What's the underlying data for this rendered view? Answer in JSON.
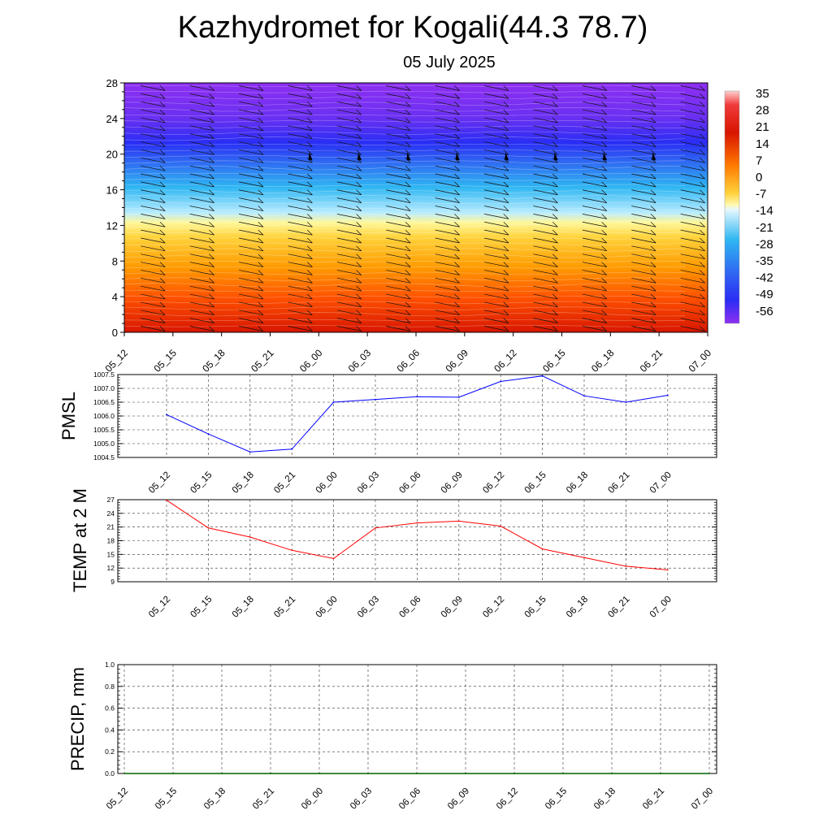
{
  "title": "Kazhydromet for Kogali(44.3 78.7)",
  "subtitle": "05 July 2025",
  "time_labels": [
    "05_12",
    "05_15",
    "05_18",
    "05_21",
    "06_00",
    "06_03",
    "06_06",
    "06_09",
    "06_12",
    "06_15",
    "06_18",
    "06_21",
    "07_00"
  ],
  "chart_data": [
    {
      "type": "heatmap",
      "name": "temperature-wind-cross-section",
      "x": [
        "05_12",
        "05_15",
        "05_18",
        "05_21",
        "06_00",
        "06_03",
        "06_06",
        "06_09",
        "06_12",
        "06_15",
        "06_18",
        "06_21",
        "07_00"
      ],
      "yticks": [
        0,
        4,
        8,
        12,
        16,
        20,
        24,
        28
      ],
      "ylim": [
        0,
        28
      ],
      "colorbar_labels": [
        "35",
        "28",
        "21",
        "14",
        "7",
        "0",
        "-7",
        "-14",
        "-21",
        "-28",
        "-35",
        "-42",
        "-49",
        "-56"
      ],
      "colors": {
        "hot": "#d71700",
        "orange": "#ff7a00",
        "yellow": "#ffef5a",
        "cyan": "#2fb7f2",
        "blue": "#1c2cf2",
        "violet": "#8a2cf0"
      },
      "wind_barbs": true
    },
    {
      "type": "line",
      "name": "pmsl",
      "ylabel": "PMSL",
      "x": [
        "05_12",
        "05_15",
        "05_18",
        "05_21",
        "06_00",
        "06_03",
        "06_06",
        "06_09",
        "06_12",
        "06_15",
        "06_18",
        "06_21",
        "07_00"
      ],
      "yticks": [
        "1004.5",
        "1005.0",
        "1005.5",
        "1006.0",
        "1006.5",
        "1007.0",
        "1007.5"
      ],
      "ylim": [
        1004.5,
        1007.5
      ],
      "grid": true,
      "color": "#0000ff",
      "values": [
        1006.05,
        1005.35,
        1004.7,
        1004.8,
        1006.5,
        1006.6,
        1006.7,
        1006.68,
        1007.25,
        1007.45,
        1006.73,
        1006.5,
        1006.75
      ]
    },
    {
      "type": "line",
      "name": "temp-2m",
      "ylabel": "TEMP at 2 M",
      "x": [
        "05_12",
        "05_15",
        "05_18",
        "05_21",
        "06_00",
        "06_03",
        "06_06",
        "06_09",
        "06_12",
        "06_15",
        "06_18",
        "06_21",
        "07_00"
      ],
      "yticks": [
        "9",
        "12",
        "15",
        "18",
        "21",
        "24",
        "27"
      ],
      "ylim": [
        9,
        27
      ],
      "grid": true,
      "color": "#ff0000",
      "values": [
        26.9,
        20.8,
        18.8,
        15.9,
        14.1,
        20.8,
        21.9,
        22.3,
        21.2,
        16.2,
        14.3,
        12.4,
        11.6
      ]
    },
    {
      "type": "line",
      "name": "precip",
      "ylabel": "PRECIP, mm",
      "x": [
        "05_12",
        "05_15",
        "05_18",
        "05_21",
        "06_00",
        "06_03",
        "06_06",
        "06_09",
        "06_12",
        "06_15",
        "06_18",
        "06_21",
        "07_00"
      ],
      "yticks": [
        "0.0",
        "0.2",
        "0.4",
        "0.6",
        "0.8",
        "1.0"
      ],
      "ylim": [
        0,
        1
      ],
      "grid": true,
      "color": "#006400",
      "values": [
        0,
        0,
        0,
        0,
        0,
        0,
        0,
        0,
        0,
        0,
        0,
        0,
        0
      ]
    }
  ]
}
